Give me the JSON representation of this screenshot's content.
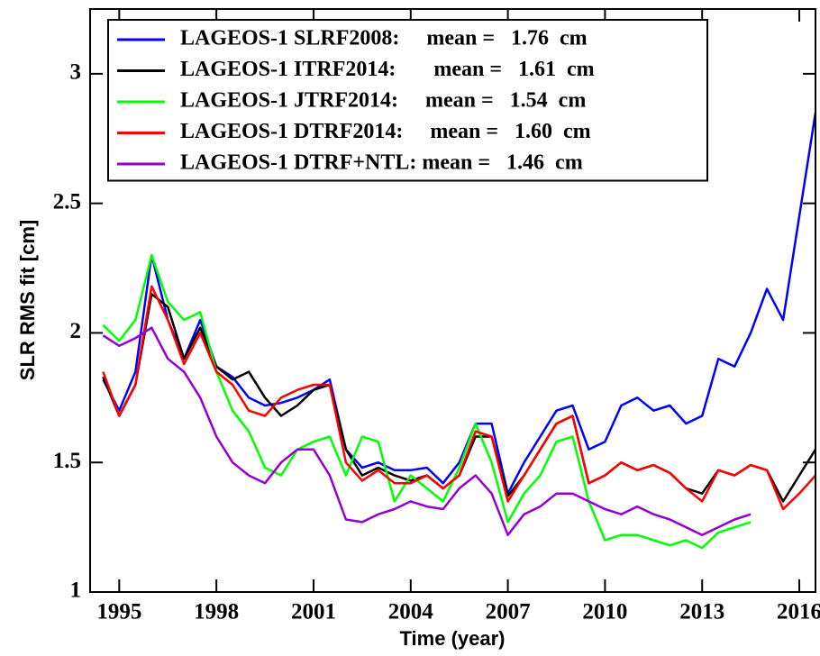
{
  "chart_data": {
    "type": "line",
    "xlabel": "Time (year)",
    "ylabel": "SLR RMS fit [cm]",
    "x": [
      1994.5,
      1995,
      1995.5,
      1996,
      1996.5,
      1997,
      1997.5,
      1998,
      1998.5,
      1999,
      1999.5,
      2000,
      2000.5,
      2001,
      2001.5,
      2002,
      2002.5,
      2003,
      2003.5,
      2004,
      2004.5,
      2005,
      2005.5,
      2006,
      2006.5,
      2007,
      2007.5,
      2008,
      2008.5,
      2009,
      2009.5,
      2010,
      2010.5,
      2011,
      2011.5,
      2012,
      2012.5,
      2013,
      2013.5,
      2014,
      2014.5,
      2015,
      2015.5,
      2016,
      2016.5
    ],
    "series": [
      {
        "name": "LAGEOS-1 SLRF2008:     mean =   1.76  cm",
        "color": "#0000ff",
        "values": [
          1.82,
          1.7,
          1.85,
          2.3,
          2.05,
          1.9,
          2.05,
          1.87,
          1.83,
          1.75,
          1.72,
          1.73,
          1.75,
          1.78,
          1.82,
          1.55,
          1.48,
          1.5,
          1.47,
          1.47,
          1.48,
          1.42,
          1.5,
          1.65,
          1.65,
          1.38,
          1.5,
          1.6,
          1.7,
          1.72,
          1.55,
          1.58,
          1.72,
          1.75,
          1.7,
          1.72,
          1.65,
          1.68,
          1.9,
          1.87,
          2.0,
          2.17,
          2.05,
          2.45,
          2.85
        ]
      },
      {
        "name": "LAGEOS-1 ITRF2014:       mean =   1.61  cm",
        "color": "#000000",
        "values": [
          1.83,
          1.68,
          1.8,
          2.15,
          2.1,
          1.9,
          2.02,
          1.87,
          1.82,
          1.85,
          1.75,
          1.68,
          1.72,
          1.78,
          1.8,
          1.55,
          1.45,
          1.48,
          1.45,
          1.43,
          1.45,
          1.4,
          1.45,
          1.6,
          1.6,
          1.37,
          1.45,
          1.55,
          1.65,
          1.68,
          1.42,
          1.45,
          1.5,
          1.47,
          1.49,
          1.46,
          1.4,
          1.38,
          1.47,
          1.45,
          1.49,
          1.47,
          1.35,
          1.45,
          1.55
        ]
      },
      {
        "name": "LAGEOS-1 JTRF2014:     mean =   1.54  cm",
        "color": "#00ff00",
        "values": [
          2.03,
          1.97,
          2.05,
          2.3,
          2.12,
          2.05,
          2.08,
          1.85,
          1.7,
          1.62,
          1.48,
          1.45,
          1.55,
          1.58,
          1.6,
          1.45,
          1.6,
          1.58,
          1.35,
          1.45,
          1.4,
          1.35,
          1.48,
          1.65,
          1.5,
          1.27,
          1.38,
          1.45,
          1.58,
          1.6,
          1.35,
          1.2,
          1.22,
          1.22,
          1.2,
          1.18,
          1.2,
          1.17,
          1.23,
          1.25,
          1.27,
          null,
          null,
          null,
          null
        ]
      },
      {
        "name": "LAGEOS-1 DTRF2014:     mean =   1.60  cm",
        "color": "#ff0000",
        "values": [
          1.85,
          1.68,
          1.8,
          2.18,
          2.05,
          1.88,
          2.0,
          1.85,
          1.8,
          1.7,
          1.68,
          1.75,
          1.78,
          1.8,
          1.8,
          1.5,
          1.43,
          1.47,
          1.42,
          1.42,
          1.45,
          1.4,
          1.45,
          1.62,
          1.6,
          1.35,
          1.45,
          1.55,
          1.65,
          1.68,
          1.42,
          1.45,
          1.5,
          1.47,
          1.49,
          1.46,
          1.4,
          1.35,
          1.47,
          1.45,
          1.49,
          1.47,
          1.32,
          1.38,
          1.45
        ]
      },
      {
        "name": "LAGEOS-1 DTRF+NTL: mean =   1.46  cm",
        "color": "#9400d3",
        "values": [
          1.99,
          1.95,
          1.98,
          2.02,
          1.9,
          1.85,
          1.75,
          1.6,
          1.5,
          1.45,
          1.42,
          1.5,
          1.55,
          1.55,
          1.45,
          1.28,
          1.27,
          1.3,
          1.32,
          1.35,
          1.33,
          1.32,
          1.4,
          1.45,
          1.38,
          1.22,
          1.3,
          1.33,
          1.38,
          1.38,
          1.35,
          1.32,
          1.3,
          1.33,
          1.3,
          1.28,
          1.25,
          1.22,
          1.25,
          1.28,
          1.3,
          null,
          null,
          null,
          null
        ]
      }
    ],
    "xlim": [
      1994.1,
      2016.5
    ],
    "xticks": [
      1995,
      1998,
      2001,
      2004,
      2007,
      2010,
      2013,
      2016
    ],
    "ylim": [
      1,
      3.25
    ],
    "yticks": [
      1,
      1.5,
      2,
      2.5,
      3
    ],
    "grid": false,
    "legend": "upper left"
  }
}
